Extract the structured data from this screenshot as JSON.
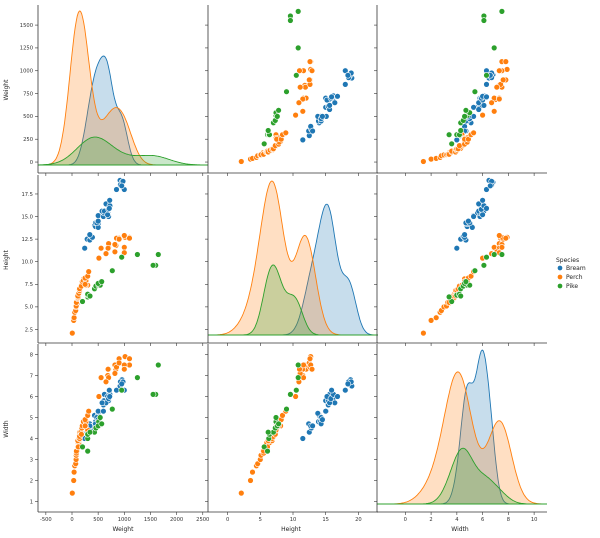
{
  "chart_data": {
    "type": "pairplot",
    "variables": [
      "Weight",
      "Height",
      "Width"
    ],
    "axis_labels": {
      "Weight": "Weight",
      "Height": "Height",
      "Width": "Width"
    },
    "x_ticks": {
      "Weight": [
        -500,
        0,
        500,
        1000,
        1500,
        2000,
        2500
      ],
      "Height": [
        0,
        5,
        10,
        15,
        20
      ],
      "Width": [
        0,
        2,
        4,
        6,
        8,
        10
      ]
    },
    "y_ticks": {
      "Weight": [
        0,
        250,
        500,
        750,
        1000,
        1250,
        1500
      ],
      "Height": [
        2.5,
        5.0,
        7.5,
        10.0,
        12.5,
        15.0,
        17.5
      ],
      "Width": [
        1,
        2,
        3,
        4,
        5,
        6,
        7,
        8
      ]
    },
    "x_ranges": {
      "Weight": [
        -650,
        2600
      ],
      "Height": [
        -3,
        23
      ],
      "Width": [
        -2.2,
        11
      ]
    },
    "y_ranges": {
      "Weight": [
        -120,
        1720
      ],
      "Height": [
        1.0,
        19.6
      ],
      "Width": [
        0.5,
        8.5
      ]
    },
    "legend": {
      "title": "Species",
      "position": "right-center"
    },
    "series": [
      {
        "name": "Bream",
        "color": "#1f77b4",
        "points": [
          [
            242,
            11.5,
            4.0
          ],
          [
            290,
            12.5,
            4.3
          ],
          [
            340,
            12.4,
            4.7
          ],
          [
            363,
            12.8,
            4.5
          ],
          [
            430,
            14.0,
            5.1
          ],
          [
            450,
            13.9,
            4.8
          ],
          [
            500,
            14.2,
            4.8
          ],
          [
            390,
            12.7,
            4.6
          ],
          [
            450,
            14.3,
            4.7
          ],
          [
            500,
            13.8,
            5.2
          ],
          [
            475,
            14.3,
            5.0
          ],
          [
            500,
            15.1,
            5.3
          ],
          [
            500,
            14.5,
            4.9
          ],
          [
            340,
            13.0,
            4.6
          ],
          [
            600,
            15.4,
            5.6
          ],
          [
            600,
            15.0,
            5.3
          ],
          [
            700,
            15.0,
            5.8
          ],
          [
            700,
            16.1,
            5.9
          ],
          [
            610,
            15.4,
            5.8
          ],
          [
            650,
            16.4,
            5.7
          ],
          [
            575,
            15.6,
            5.7
          ],
          [
            685,
            15.5,
            6.0
          ],
          [
            620,
            15.6,
            6.1
          ],
          [
            680,
            15.2,
            6.0
          ],
          [
            700,
            15.8,
            5.9
          ],
          [
            725,
            16.2,
            6.1
          ],
          [
            720,
            16.8,
            6.0
          ],
          [
            714,
            15.9,
            6.3
          ],
          [
            850,
            18.0,
            6.3
          ],
          [
            1000,
            18.0,
            6.3
          ],
          [
            920,
            19.0,
            6.5
          ],
          [
            955,
            18.8,
            6.8
          ],
          [
            925,
            18.5,
            6.7
          ],
          [
            975,
            18.9,
            6.7
          ],
          [
            950,
            18.4,
            6.6
          ]
        ]
      },
      {
        "name": "Perch",
        "color": "#ff7f0e",
        "points": [
          [
            6,
            2.1,
            1.4
          ],
          [
            32,
            3.5,
            2.0
          ],
          [
            40,
            3.8,
            2.4
          ],
          [
            51,
            4.4,
            2.7
          ],
          [
            70,
            4.6,
            2.8
          ],
          [
            100,
            5.4,
            3.4
          ],
          [
            78,
            5.0,
            3.0
          ],
          [
            80,
            5.1,
            3.2
          ],
          [
            85,
            5.5,
            3.3
          ],
          [
            85,
            5.5,
            3.4
          ],
          [
            110,
            5.9,
            3.6
          ],
          [
            115,
            6.0,
            3.8
          ],
          [
            125,
            6.2,
            3.9
          ],
          [
            130,
            6.4,
            3.8
          ],
          [
            120,
            6.1,
            3.6
          ],
          [
            120,
            6.4,
            3.9
          ],
          [
            130,
            6.8,
            3.9
          ],
          [
            135,
            6.7,
            4.1
          ],
          [
            110,
            6.2,
            3.9
          ],
          [
            130,
            6.5,
            4.0
          ],
          [
            150,
            6.8,
            4.2
          ],
          [
            145,
            6.8,
            4.0
          ],
          [
            150,
            7.0,
            4.3
          ],
          [
            170,
            7.3,
            4.3
          ],
          [
            225,
            8.1,
            4.6
          ],
          [
            145,
            7.0,
            4.1
          ],
          [
            188,
            7.5,
            4.5
          ],
          [
            180,
            7.3,
            4.2
          ],
          [
            197,
            7.8,
            4.6
          ],
          [
            218,
            7.9,
            4.8
          ],
          [
            300,
            7.4,
            4.4
          ],
          [
            260,
            7.4,
            4.6
          ],
          [
            265,
            7.9,
            4.8
          ],
          [
            250,
            7.5,
            4.6
          ],
          [
            250,
            8.2,
            4.9
          ],
          [
            300,
            8.4,
            5.1
          ],
          [
            320,
            8.9,
            5.3
          ],
          [
            514,
            10.4,
            6.0
          ],
          [
            556,
            11.5,
            6.9
          ],
          [
            840,
            11.8,
            7.3
          ],
          [
            685,
            11.5,
            7.0
          ],
          [
            700,
            11.6,
            6.9
          ],
          [
            700,
            12.0,
            7.3
          ],
          [
            690,
            11.5,
            7.3
          ],
          [
            900,
            12.6,
            7.8
          ],
          [
            650,
            10.9,
            6.7
          ],
          [
            820,
            11.9,
            7.5
          ],
          [
            850,
            12.6,
            7.4
          ],
          [
            900,
            12.5,
            7.6
          ],
          [
            1015,
            12.7,
            7.9
          ],
          [
            820,
            11.1,
            7.1
          ],
          [
            1100,
            12.7,
            7.5
          ],
          [
            1000,
            11.6,
            7.5
          ],
          [
            1100,
            12.6,
            7.8
          ],
          [
            1000,
            12.9,
            7.3
          ],
          [
            1000,
            11.0,
            7.3
          ]
        ]
      },
      {
        "name": "Pike",
        "color": "#2ca02c",
        "points": [
          [
            200,
            5.6,
            3.6
          ],
          [
            300,
            6.1,
            3.4
          ],
          [
            300,
            6.3,
            4.0
          ],
          [
            300,
            6.4,
            4.2
          ],
          [
            430,
            7.0,
            4.3
          ],
          [
            345,
            6.2,
            4.3
          ],
          [
            456,
            7.3,
            4.5
          ],
          [
            510,
            7.4,
            4.8
          ],
          [
            540,
            7.4,
            5.0
          ],
          [
            500,
            7.6,
            4.6
          ],
          [
            567,
            7.8,
            4.7
          ],
          [
            770,
            9.0,
            5.4
          ],
          [
            950,
            10.5,
            6.3
          ],
          [
            1250,
            10.8,
            6.9
          ],
          [
            1600,
            9.6,
            6.1
          ],
          [
            1550,
            9.6,
            6.1
          ],
          [
            1650,
            10.8,
            7.5
          ]
        ]
      }
    ]
  }
}
